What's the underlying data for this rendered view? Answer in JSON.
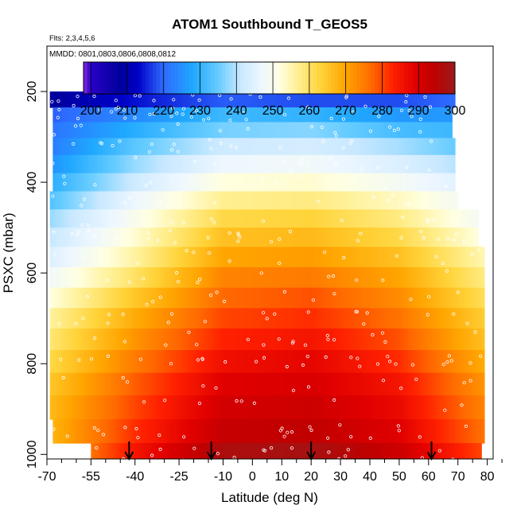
{
  "chart_data": {
    "type": "heatmap",
    "title": "ATOM1 Southbound T_GEOS5",
    "flights_note": "Flts: 2,3,4,5,6",
    "dates_note": "MMDD: 0801,0803,0806,0808,0812",
    "xlabel": "Latitude (deg N)",
    "ylabel": "PSXC (mbar)",
    "xlim": [
      -70,
      82
    ],
    "ylim": [
      1010,
      100
    ],
    "y_inverted": true,
    "x_ticks": [
      -70,
      -55,
      -40,
      -25,
      -10,
      0,
      10,
      20,
      30,
      40,
      50,
      60,
      70,
      80
    ],
    "x_tick_labels": [
      "-70",
      "-55",
      "-40",
      "-25",
      "-10",
      "0",
      "10",
      "20",
      "30",
      "40",
      "50",
      "60",
      "70",
      "80"
    ],
    "x_minor_ticks": [
      -65,
      -60,
      -50,
      -45,
      -35,
      -30,
      -20,
      -15,
      -5,
      5,
      15,
      25,
      35,
      45,
      55,
      65,
      75,
      85
    ],
    "y_ticks": [
      200,
      400,
      600,
      800,
      1000
    ],
    "y_tick_labels": [
      "200",
      "400",
      "600",
      "800",
      "1000"
    ],
    "colorbar": {
      "min": 198,
      "max": 300,
      "ticks": [
        200,
        210,
        220,
        230,
        240,
        250,
        260,
        270,
        280,
        290,
        300
      ],
      "tick_labels": [
        "200",
        "210",
        "220",
        "230",
        "240",
        "250",
        "260",
        "270",
        "280",
        "290",
        "300"
      ],
      "colors": [
        {
          "v": 198,
          "c": "#8a2be2"
        },
        {
          "v": 200,
          "c": "#2a00c8"
        },
        {
          "v": 208,
          "c": "#00009a"
        },
        {
          "v": 213,
          "c": "#0000c8"
        },
        {
          "v": 220,
          "c": "#2e6cff"
        },
        {
          "v": 228,
          "c": "#1fa8ff"
        },
        {
          "v": 235,
          "c": "#66ccff"
        },
        {
          "v": 241,
          "c": "#c8e8ff"
        },
        {
          "v": 247,
          "c": "#eef7ff"
        },
        {
          "v": 252,
          "c": "#ffffe0"
        },
        {
          "v": 257,
          "c": "#ffef90"
        },
        {
          "v": 263,
          "c": "#ffd43a"
        },
        {
          "v": 270,
          "c": "#ffa500"
        },
        {
          "v": 277,
          "c": "#ff6a00"
        },
        {
          "v": 283,
          "c": "#ff2000"
        },
        {
          "v": 289,
          "c": "#e00000"
        },
        {
          "v": 294,
          "c": "#c00000"
        },
        {
          "v": 300,
          "c": "#9a1a1a"
        }
      ]
    },
    "pressure_levels": [
      180,
      220,
      250,
      285,
      320,
      360,
      400,
      440,
      480,
      520,
      565,
      610,
      655,
      700,
      745,
      795,
      845,
      895,
      950,
      1000
    ],
    "lat_range_by_level": [
      [
        -31,
        35
      ],
      [
        -69,
        69
      ],
      [
        -68,
        68
      ],
      [
        -68,
        68
      ],
      [
        -68,
        69
      ],
      [
        -68,
        69
      ],
      [
        -68,
        69
      ],
      [
        -69,
        70
      ],
      [
        -69,
        77
      ],
      [
        -69,
        77
      ],
      [
        -69,
        79
      ],
      [
        -69,
        79
      ],
      [
        -69,
        79
      ],
      [
        -69,
        79
      ],
      [
        -69,
        79
      ],
      [
        -69,
        79
      ],
      [
        -69,
        79
      ],
      [
        -69,
        79
      ],
      [
        -68,
        79
      ],
      [
        -55,
        78
      ]
    ],
    "temperature_profiles": [
      {
        "p": 180,
        "lat": [
          -31,
          0,
          35
        ],
        "t": [
          210,
          209,
          211
        ]
      },
      {
        "p": 220,
        "lat": [
          -69,
          -40,
          -10,
          20,
          50,
          69
        ],
        "t": [
          208,
          214,
          219,
          218,
          218,
          220
        ]
      },
      {
        "p": 250,
        "lat": [
          -69,
          -40,
          -10,
          20,
          50,
          69
        ],
        "t": [
          219,
          224,
          231,
          230,
          226,
          226
        ]
      },
      {
        "p": 285,
        "lat": [
          -69,
          -40,
          -10,
          20,
          50,
          69
        ],
        "t": [
          221,
          229,
          236,
          237,
          232,
          231
        ]
      },
      {
        "p": 320,
        "lat": [
          -69,
          -40,
          -10,
          20,
          50,
          69
        ],
        "t": [
          222,
          234,
          242,
          243,
          239,
          235
        ]
      },
      {
        "p": 360,
        "lat": [
          -69,
          -40,
          -10,
          20,
          50,
          69
        ],
        "t": [
          225,
          238,
          247,
          248,
          244,
          240
        ]
      },
      {
        "p": 400,
        "lat": [
          -69,
          -40,
          -10,
          20,
          50,
          69
        ],
        "t": [
          229,
          242,
          252,
          253,
          249,
          245
        ]
      },
      {
        "p": 440,
        "lat": [
          -69,
          -40,
          -10,
          20,
          50,
          70
        ],
        "t": [
          233,
          247,
          257,
          258,
          254,
          249
        ]
      },
      {
        "p": 480,
        "lat": [
          -69,
          -40,
          -10,
          20,
          50,
          77
        ],
        "t": [
          238,
          250,
          262,
          263,
          258,
          249
        ]
      },
      {
        "p": 520,
        "lat": [
          -69,
          -40,
          -10,
          20,
          50,
          77
        ],
        "t": [
          241,
          253,
          266,
          267,
          262,
          252
        ]
      },
      {
        "p": 565,
        "lat": [
          -69,
          -40,
          -10,
          20,
          50,
          79
        ],
        "t": [
          244,
          256,
          270,
          271,
          266,
          255
        ]
      },
      {
        "p": 610,
        "lat": [
          -69,
          -40,
          -10,
          20,
          50,
          79
        ],
        "t": [
          248,
          260,
          274,
          275,
          270,
          258
        ]
      },
      {
        "p": 655,
        "lat": [
          -69,
          -40,
          -10,
          20,
          50,
          79
        ],
        "t": [
          252,
          265,
          277,
          279,
          273,
          261
        ]
      },
      {
        "p": 700,
        "lat": [
          -69,
          -40,
          -10,
          20,
          50,
          79
        ],
        "t": [
          256,
          269,
          280,
          282,
          276,
          264
        ]
      },
      {
        "p": 745,
        "lat": [
          -69,
          -40,
          -10,
          20,
          50,
          79
        ],
        "t": [
          259,
          272,
          283,
          285,
          279,
          266
        ]
      },
      {
        "p": 795,
        "lat": [
          -69,
          -40,
          -10,
          20,
          50,
          79
        ],
        "t": [
          262,
          275,
          286,
          288,
          282,
          269
        ]
      },
      {
        "p": 845,
        "lat": [
          -69,
          -40,
          -10,
          20,
          50,
          79
        ],
        "t": [
          265,
          278,
          289,
          290,
          285,
          272
        ]
      },
      {
        "p": 895,
        "lat": [
          -69,
          -40,
          -10,
          20,
          50,
          79
        ],
        "t": [
          267,
          280,
          291,
          292,
          287,
          274
        ]
      },
      {
        "p": 950,
        "lat": [
          -68,
          -40,
          -10,
          20,
          50,
          79
        ],
        "t": [
          268,
          282,
          293,
          294,
          289,
          276
        ]
      },
      {
        "p": 1000,
        "lat": [
          -55,
          -40,
          -10,
          20,
          50,
          78
        ],
        "t": [
          276,
          285,
          297,
          298,
          292,
          280
        ]
      }
    ],
    "arrows_lat": [
      -42,
      -14,
      20,
      61
    ],
    "arrow_color": "#000000",
    "sample_marker_color": "#ffffff"
  }
}
